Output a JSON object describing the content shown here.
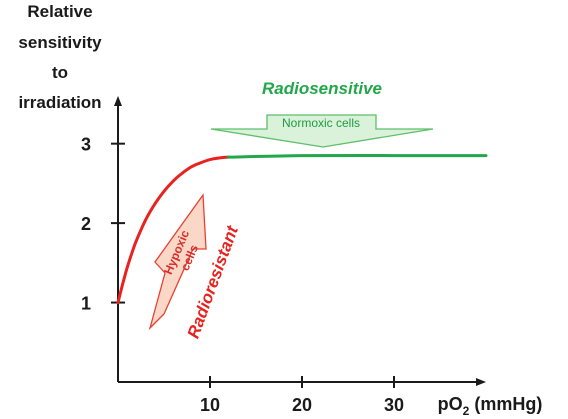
{
  "chart_data": {
    "type": "line",
    "title": "",
    "ylabel_lines": [
      "Relative",
      "sensitivity",
      "to",
      "irradiation"
    ],
    "xlabel": {
      "prefix": "pO",
      "sub": "2",
      "suffix": " (mmHg)"
    },
    "xlim": [
      0,
      40
    ],
    "ylim": [
      0.0,
      3.6
    ],
    "x_ticks": [
      10,
      20,
      30
    ],
    "y_ticks": [
      1,
      2,
      3
    ],
    "grid": false,
    "series": [
      {
        "name": "",
        "color": "#e8231f",
        "x": [
          0,
          0.5,
          1,
          1.5,
          2,
          3,
          4,
          5,
          6,
          7,
          8,
          9,
          10,
          11,
          12
        ],
        "y": [
          1.0,
          1.23,
          1.44,
          1.62,
          1.78,
          2.04,
          2.24,
          2.4,
          2.53,
          2.63,
          2.71,
          2.76,
          2.8,
          2.82,
          2.83
        ]
      },
      {
        "name": "",
        "color": "#22a84a",
        "x": [
          12,
          20,
          30,
          40
        ],
        "y": [
          2.83,
          2.85,
          2.85,
          2.85
        ]
      }
    ],
    "annotations": {
      "radiosensitive": "Radiosensitive",
      "normoxic": "Normoxic cells",
      "radioresistant": "Radioresistant",
      "hypoxic_line1": "Hypoxic",
      "hypoxic_line2": "cells"
    },
    "colors": {
      "axis": "#1a1a1a",
      "green_arrow_fill": "#d9f2d9",
      "green_arrow_stroke": "#5fbf6a",
      "red_arrow_fill": "#fbd7c8",
      "red_arrow_stroke": "#e8402f"
    }
  }
}
